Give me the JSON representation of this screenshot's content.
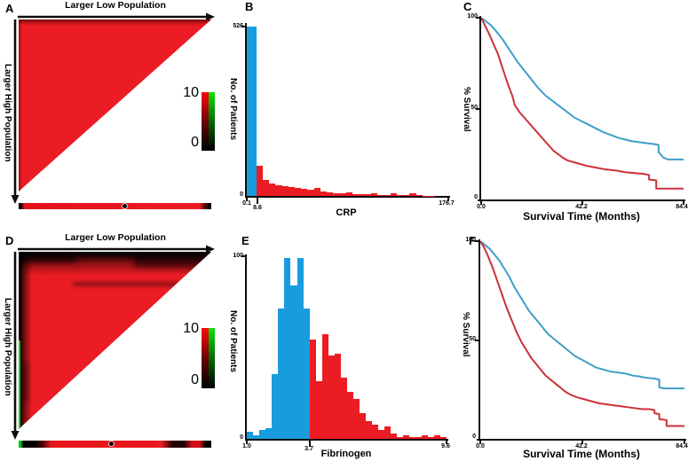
{
  "figure": {
    "colors": {
      "red": "#ec1c24",
      "blue": "#189cdf",
      "surv_blue": "#3e9fc8",
      "surv_red": "#cb3038",
      "green": "#1ec41e",
      "black": "#000000"
    },
    "panel_a": {
      "letter": "A",
      "top_axis_label": "Larger Low Population",
      "left_axis_label": "Larger High Population",
      "colorbar_max": "10",
      "colorbar_min": "0"
    },
    "panel_b": {
      "letter": "B",
      "ylabel": "No. of Patients",
      "xlabel": "CRP",
      "ymax": "526",
      "ymin": "0",
      "xticks": [
        "0.1",
        "8.6",
        "176.7"
      ]
    },
    "panel_c": {
      "letter": "C",
      "ylabel": "% Survival",
      "xlabel": "Survival Time (Months)",
      "yticks": [
        "100",
        "50",
        "0"
      ],
      "xticks": [
        "0.0",
        "42.2",
        "84.4"
      ]
    },
    "panel_d": {
      "letter": "D",
      "top_axis_label": "Larger Low Population",
      "left_axis_label": "Larger High Population",
      "colorbar_max": "10",
      "colorbar_min": "0"
    },
    "panel_e": {
      "letter": "E",
      "ylabel": "No. of Patients",
      "xlabel": "Fibrinogen",
      "ymax": "100",
      "ymin": "0",
      "xticks": [
        "1.0",
        "3.7",
        "9.6"
      ]
    },
    "panel_f": {
      "letter": "F",
      "ylabel": "% Survival",
      "xlabel": "Survival Time (Months)",
      "yticks": [
        "100",
        "50",
        "0"
      ],
      "xticks": [
        "0.0",
        "42.2",
        "84.4"
      ]
    }
  },
  "chart_data": [
    {
      "type": "heatmap",
      "panel": "A",
      "top_axis_label": "Larger Low Population",
      "left_axis_label": "Larger High Population",
      "colorbar": {
        "min": 0,
        "max": 10
      },
      "content": "uniform saturated red upper-left right-triangle matrix (all cells at high value)",
      "strip": {
        "description": "1-D red strip below triangle, black end caps, black dot marker",
        "dot_fraction": 0.55
      }
    },
    {
      "type": "bar",
      "panel": "B",
      "xlabel": "CRP",
      "ylabel": "No. of Patients",
      "xlim": [
        0.1,
        176.7
      ],
      "ylim": [
        0,
        526
      ],
      "xticks": [
        0.1,
        8.6,
        176.7
      ],
      "groups": [
        {
          "name": "CRP low (0.1-8.6)",
          "color": "#189cdf",
          "range": [
            0.1,
            8.6
          ],
          "values": [
            526
          ]
        },
        {
          "name": "CRP high (8.6-176.7)",
          "color": "#ec1c24",
          "range": [
            8.6,
            176.7
          ],
          "values": [
            95,
            50,
            38,
            33,
            30,
            27,
            24,
            21,
            18,
            24,
            13,
            11,
            9,
            8,
            11,
            6,
            5,
            5,
            9,
            4,
            4,
            7,
            3,
            3,
            9,
            2,
            1,
            1,
            0,
            0
          ]
        }
      ]
    },
    {
      "type": "line",
      "panel": "C",
      "xlabel": "Survival Time (Months)",
      "ylabel": "% Survival",
      "xlim": [
        0,
        84.4
      ],
      "ylim": [
        0,
        100
      ],
      "xticks": [
        0.0,
        42.2,
        84.4
      ],
      "yticks": [
        0,
        50,
        100
      ],
      "series": [
        {
          "name": "low group (blue)",
          "color": "#3e9fc8",
          "points": [
            [
              0,
              100
            ],
            [
              2,
              98
            ],
            [
              4,
              96
            ],
            [
              6,
              93
            ],
            [
              9,
              88
            ],
            [
              12,
              82
            ],
            [
              15,
              76
            ],
            [
              18,
              71
            ],
            [
              21,
              66
            ],
            [
              24,
              61
            ],
            [
              27,
              57
            ],
            [
              30,
              54
            ],
            [
              33,
              51
            ],
            [
              36,
              48
            ],
            [
              39,
              45
            ],
            [
              42,
              43
            ],
            [
              45,
              41
            ],
            [
              48,
              39
            ],
            [
              51,
              37
            ],
            [
              54,
              35.5
            ],
            [
              57,
              34
            ],
            [
              60,
              33
            ],
            [
              63,
              32
            ],
            [
              66,
              31.5
            ],
            [
              69,
              31
            ],
            [
              72,
              30.5
            ],
            [
              74,
              30
            ],
            [
              74,
              26
            ],
            [
              76,
              23
            ],
            [
              78,
              22
            ],
            [
              84.4,
              22
            ]
          ]
        },
        {
          "name": "high group (red)",
          "color": "#cb3038",
          "points": [
            [
              0,
              100
            ],
            [
              1.5,
              96
            ],
            [
              3,
              92
            ],
            [
              5,
              86
            ],
            [
              7,
              80
            ],
            [
              9,
              72
            ],
            [
              11,
              64
            ],
            [
              13,
              57
            ],
            [
              14,
              52
            ],
            [
              16,
              48
            ],
            [
              18,
              45
            ],
            [
              20,
              42
            ],
            [
              22,
              39
            ],
            [
              24,
              36
            ],
            [
              26,
              33
            ],
            [
              28,
              30
            ],
            [
              30,
              27
            ],
            [
              32,
              25
            ],
            [
              34,
              23
            ],
            [
              36,
              21.5
            ],
            [
              40,
              20
            ],
            [
              44,
              18.5
            ],
            [
              48,
              17.5
            ],
            [
              52,
              16.5
            ],
            [
              56,
              16
            ],
            [
              60,
              15
            ],
            [
              64,
              14.5
            ],
            [
              68,
              14
            ],
            [
              70,
              13.5
            ],
            [
              70,
              11
            ],
            [
              73,
              10.5
            ],
            [
              73,
              6
            ],
            [
              84.4,
              6
            ]
          ]
        }
      ]
    },
    {
      "type": "heatmap",
      "panel": "D",
      "top_axis_label": "Larger Low Population",
      "left_axis_label": "Larger High Population",
      "colorbar": {
        "min": 0,
        "max": 10
      },
      "content": "red upper-left right-triangle matrix with black shading along top and left edges and thin green line at extreme left edge",
      "strip": {
        "description": "1-D strip: green left tip, black segment, red middle, dark segment near right, black right tip; black dot marker",
        "dot_fraction": 0.48
      }
    },
    {
      "type": "bar",
      "panel": "E",
      "xlabel": "Fibrinogen",
      "ylabel": "No. of Patients",
      "xlim": [
        1.0,
        9.6
      ],
      "ylim": [
        0,
        100
      ],
      "xticks": [
        1.0,
        3.7,
        9.6
      ],
      "groups": [
        {
          "name": "Fibrinogen low (1.0-3.7)",
          "color": "#189cdf",
          "range": [
            1.0,
            3.7
          ],
          "values": [
            4,
            2,
            5,
            6,
            36,
            72,
            100,
            85,
            100,
            72
          ]
        },
        {
          "name": "Fibrinogen high (3.7-9.6)",
          "color": "#ec1c24",
          "range": [
            3.7,
            9.6
          ],
          "values": [
            55,
            32,
            58,
            46,
            47,
            34,
            26,
            22,
            14,
            10,
            8,
            5,
            7,
            3,
            1,
            2,
            1,
            1,
            2,
            1,
            2,
            1
          ]
        }
      ]
    },
    {
      "type": "line",
      "panel": "F",
      "xlabel": "Survival Time (Months)",
      "ylabel": "% Survival",
      "xlim": [
        0,
        84.4
      ],
      "ylim": [
        0,
        100
      ],
      "xticks": [
        0.0,
        42.2,
        84.4
      ],
      "yticks": [
        0,
        50,
        100
      ],
      "series": [
        {
          "name": "low group (blue)",
          "color": "#3e9fc8",
          "points": [
            [
              0,
              100
            ],
            [
              2,
              98
            ],
            [
              4,
              96
            ],
            [
              6,
              93
            ],
            [
              8,
              90
            ],
            [
              10,
              86
            ],
            [
              12,
              82
            ],
            [
              14,
              77
            ],
            [
              16,
              73
            ],
            [
              18,
              69
            ],
            [
              20,
              65
            ],
            [
              22,
              62
            ],
            [
              24,
              59
            ],
            [
              26,
              56
            ],
            [
              28,
              53
            ],
            [
              30,
              51
            ],
            [
              33,
              48
            ],
            [
              36,
              45
            ],
            [
              39,
              42
            ],
            [
              42,
              40
            ],
            [
              45,
              38
            ],
            [
              48,
              36
            ],
            [
              51,
              35
            ],
            [
              54,
              34
            ],
            [
              57,
              33.5
            ],
            [
              60,
              33
            ],
            [
              63,
              32
            ],
            [
              66,
              31.5
            ],
            [
              68,
              31
            ],
            [
              72,
              30.5
            ],
            [
              74,
              30
            ],
            [
              74,
              26
            ],
            [
              76,
              25.5
            ],
            [
              84.4,
              25.5
            ]
          ]
        },
        {
          "name": "high group (red)",
          "color": "#cb3038",
          "points": [
            [
              0,
              100
            ],
            [
              1.5,
              97
            ],
            [
              3,
              93
            ],
            [
              5,
              87
            ],
            [
              7,
              80
            ],
            [
              9,
              73
            ],
            [
              11,
              66
            ],
            [
              13,
              60
            ],
            [
              15,
              54
            ],
            [
              17,
              49
            ],
            [
              19,
              45
            ],
            [
              21,
              41
            ],
            [
              23,
              38
            ],
            [
              25,
              35
            ],
            [
              27,
              32
            ],
            [
              29,
              30
            ],
            [
              31,
              28
            ],
            [
              33,
              26
            ],
            [
              35,
              24
            ],
            [
              37,
              22.5
            ],
            [
              40,
              21
            ],
            [
              43,
              20
            ],
            [
              46,
              19
            ],
            [
              49,
              18
            ],
            [
              52,
              17.5
            ],
            [
              55,
              17
            ],
            [
              58,
              16.5
            ],
            [
              61,
              16
            ],
            [
              64,
              15.5
            ],
            [
              67,
              15
            ],
            [
              70,
              15
            ],
            [
              72,
              14.5
            ],
            [
              72,
              13
            ],
            [
              74,
              12.5
            ],
            [
              74,
              10
            ],
            [
              77,
              9.5
            ],
            [
              77,
              6.5
            ],
            [
              84.4,
              6.5
            ]
          ]
        }
      ]
    }
  ]
}
